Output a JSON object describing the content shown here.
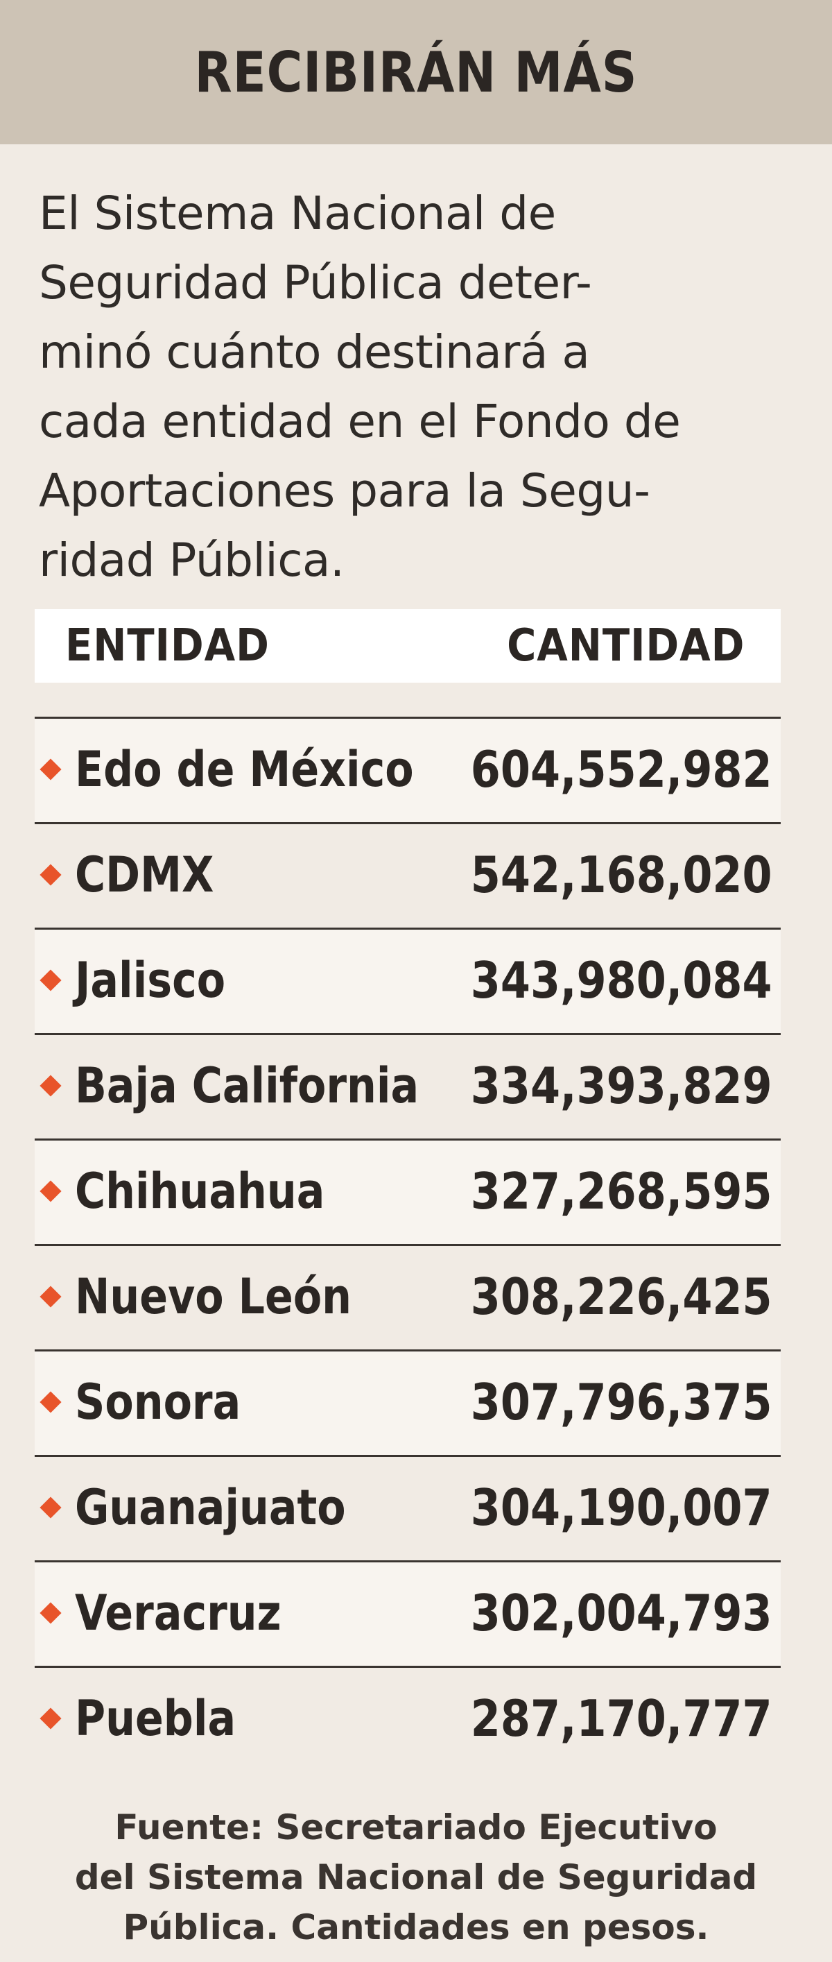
{
  "title": "RECIBIRÁN MÁS",
  "intro_lines": [
    "El Sistema Nacional de",
    "Seguridad Pública deter-",
    "minó cuánto destinará a",
    "cada entidad en el Fondo de",
    "Aportaciones para la Segu-",
    "ridad Pública."
  ],
  "colors": {
    "header_bg": "#cdc3b5",
    "page_bg": "#f1ebe4",
    "bullet": "#e8542a"
  },
  "bullet_icon": "diamond-bullet-icon",
  "chart_data": {
    "type": "table",
    "columns": [
      "ENTIDAD",
      "CANTIDAD"
    ],
    "rows": [
      {
        "entity": "Edo de México",
        "amount": "604,552,982",
        "value": 604552982
      },
      {
        "entity": "CDMX",
        "amount": "542,168,020",
        "value": 542168020
      },
      {
        "entity": "Jalisco",
        "amount": "343,980,084",
        "value": 343980084
      },
      {
        "entity": "Baja California",
        "amount": "334,393,829",
        "value": 334393829
      },
      {
        "entity": "Chihuahua",
        "amount": "327,268,595",
        "value": 327268595
      },
      {
        "entity": "Nuevo León",
        "amount": "308,226,425",
        "value": 308226425
      },
      {
        "entity": "Sonora",
        "amount": "307,796,375",
        "value": 307796375
      },
      {
        "entity": "Guanajuato",
        "amount": "304,190,007",
        "value": 304190007
      },
      {
        "entity": "Veracruz",
        "amount": "302,004,793",
        "value": 302004793
      },
      {
        "entity": "Puebla",
        "amount": "287,170,777",
        "value": 287170777
      }
    ]
  },
  "source_lines": [
    "Fuente: Secretariado Ejecutivo",
    "del Sistema Nacional de Seguridad",
    "Pública. Cantidades en pesos."
  ]
}
